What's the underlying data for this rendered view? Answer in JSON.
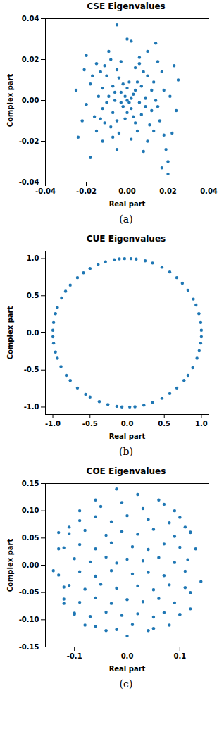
{
  "chart_data": [
    {
      "type": "scatter",
      "title": "CSE Eigenvalues",
      "x_label": "Real part",
      "y_label": "Complex part",
      "caption": "(a)",
      "color": "#1f77b4",
      "marker": "o",
      "xlim": [
        -0.04,
        0.04
      ],
      "ylim": [
        -0.04,
        0.04
      ],
      "xticks": [
        -0.04,
        -0.02,
        {
          "value": 0,
          "label": "0.00"
        },
        0.02,
        0.04
      ],
      "yticks": [
        -0.04,
        -0.02,
        {
          "value": 0,
          "label": "0.00"
        },
        0.02,
        0.04
      ],
      "x": [
        -0.005,
        0.0,
        0.002,
        -0.02,
        0.02,
        0.02,
        0.017,
        -0.025,
        -0.024,
        0.025,
        0.024,
        0.014,
        -0.018,
        0.019,
        -0.015,
        0.015,
        -0.012,
        0.01,
        -0.008,
        0.006,
        -0.018,
        0.018,
        -0.016,
        0.016,
        -0.01,
        0.01,
        -0.011,
        0.011,
        -0.005,
        0.004,
        -0.004,
        0.005,
        -0.014,
        0.014,
        -0.007,
        0.007,
        -0.007,
        0.007,
        -0.003,
        0.003,
        -0.002,
        0.002,
        0.0,
        -0.009,
        0.009,
        0.001,
        -0.001,
        -0.012,
        0.012,
        -0.012,
        0.012,
        -0.004,
        0.004,
        -0.006,
        0.006,
        0.0,
        0.0,
        -0.013,
        0.013,
        -0.003,
        0.002,
        -0.02,
        0.021,
        -0.008,
        0.008,
        -0.015,
        0.017,
        -0.021,
        0.022,
        -0.009,
        0.008,
        -0.005,
        0.01,
        -0.022,
        0.023,
        -0.002,
        0.005,
        -0.005,
        0.009,
        -0.01,
        0.003,
        -0.006,
        0.004,
        -0.001,
        0.001,
        -0.003,
        0.002,
        -0.017,
        0.015,
        -0.011,
        0.013,
        -0.013,
        0.006,
        -0.007,
        0.018
      ],
      "values": [
        0.037,
        0.03,
        0.029,
        0.022,
        -0.03,
        -0.036,
        -0.033,
        0.005,
        -0.018,
        0.01,
        -0.005,
        0.028,
        -0.028,
        -0.024,
        0.018,
        0.019,
        -0.02,
        -0.02,
        0.02,
        0.021,
        0.008,
        0.005,
        -0.008,
        -0.01,
        0.012,
        0.012,
        -0.011,
        -0.012,
        0.015,
        0.016,
        -0.016,
        -0.015,
        0.002,
        0.0,
        0.007,
        0.007,
        -0.006,
        -0.007,
        0.004,
        0.003,
        -0.003,
        -0.004,
        0.0,
        0.002,
        0.001,
        0.009,
        -0.009,
        0.006,
        0.005,
        -0.004,
        -0.005,
        0.011,
        -0.011,
        0.0,
        -0.001,
        0.006,
        -0.006,
        0.014,
        -0.015,
        0.019,
        -0.019,
        -0.002,
        0.002,
        -0.013,
        0.014,
        -0.015,
        0.014,
        0.015,
        -0.016,
        0.024,
        -0.025,
        -0.024,
        0.024,
        -0.01,
        0.017,
        0.008,
        0.009,
        -0.01,
        -0.003,
        -0.001,
        -0.008,
        0.004,
        0.005,
        0.002,
        -0.001,
        -0.001,
        0.001,
        0.012,
        -0.003,
        0.017,
        0.009,
        -0.009,
        0.018,
        -0.018,
        -0.017
      ]
    },
    {
      "type": "scatter",
      "title": "CUE Eigenvalues",
      "x_label": "Real part",
      "y_label": "Complex part",
      "caption": "(b)",
      "color": "#1f77b4",
      "marker": "o",
      "xlim": [
        -1.1,
        1.1
      ],
      "ylim": [
        -1.1,
        1.1
      ],
      "xticks": [
        {
          "value": -1,
          "label": "-1.0"
        },
        -0.5,
        {
          "value": 0,
          "label": "0.0"
        },
        0.5,
        {
          "value": 1,
          "label": "1.0"
        }
      ],
      "yticks": [
        {
          "value": -1,
          "label": "-1.0"
        },
        -0.5,
        {
          "value": 0,
          "label": "0.0"
        },
        0.5,
        {
          "value": 1,
          "label": "1.0"
        }
      ],
      "x": [
        0.999,
        0.99,
        0.966,
        0.927,
        0.891,
        0.819,
        0.743,
        0.669,
        0.574,
        0.469,
        0.342,
        0.242,
        0.122,
        0.052,
        -0.035,
        -0.105,
        -0.174,
        -0.292,
        -0.391,
        -0.5,
        -0.588,
        -0.669,
        -0.766,
        -0.829,
        -0.883,
        -0.94,
        -0.966,
        -0.99,
        -0.999,
        -0.999,
        -0.99,
        -0.966,
        -0.94,
        -0.891,
        -0.819,
        -0.766,
        -0.669,
        -0.559,
        -0.5,
        -0.375,
        -0.259,
        -0.139,
        -0.07,
        0.035,
        0.105,
        0.225,
        0.342,
        0.469,
        0.574,
        0.669,
        0.766,
        0.819,
        0.883,
        0.94,
        0.97,
        0.99,
        0.999
      ],
      "values": [
        0.035,
        0.139,
        0.259,
        0.375,
        0.454,
        0.574,
        0.669,
        0.743,
        0.819,
        0.883,
        0.94,
        0.97,
        0.993,
        0.999,
        0.999,
        0.995,
        0.985,
        0.956,
        0.921,
        0.866,
        0.809,
        0.743,
        0.643,
        0.559,
        0.469,
        0.342,
        0.259,
        0.139,
        0.035,
        -0.052,
        -0.139,
        -0.259,
        -0.342,
        -0.454,
        -0.574,
        -0.643,
        -0.743,
        -0.829,
        -0.866,
        -0.927,
        -0.966,
        -0.99,
        -0.998,
        -0.999,
        -0.995,
        -0.974,
        -0.94,
        -0.883,
        -0.819,
        -0.743,
        -0.643,
        -0.574,
        -0.469,
        -0.342,
        -0.242,
        -0.139,
        -0.052
      ]
    },
    {
      "type": "scatter",
      "title": "COE Eigenvalues",
      "x_label": "Real part",
      "y_label": "Complex part",
      "caption": "(c)",
      "color": "#1f77b4",
      "marker": "o",
      "xlim": [
        -0.155,
        0.155
      ],
      "ylim": [
        -0.15,
        0.15
      ],
      "xticks": [
        -0.1,
        {
          "value": 0,
          "label": "0.0"
        },
        0.1
      ],
      "yticks": [
        -0.15,
        {
          "value": -0.1,
          "label": "-0.10"
        },
        -0.05,
        {
          "value": 0,
          "label": "0.00"
        },
        0.05,
        {
          "value": 0.1,
          "label": "0.10"
        },
        0.15
      ],
      "x": [
        -0.13,
        -0.12,
        -0.11,
        -0.1,
        -0.09,
        -0.08,
        -0.06,
        -0.04,
        -0.02,
        0.0,
        0.02,
        0.04,
        0.06,
        0.08,
        0.09,
        0.1,
        0.11,
        0.12,
        0.13,
        0.14,
        -0.14,
        -0.13,
        -0.12,
        0.12,
        0.12,
        -0.05,
        -0.01,
        0.03,
        0.07,
        -0.09,
        -0.06,
        -0.03,
        0.0,
        0.04,
        0.08,
        0.1,
        -0.11,
        -0.08,
        -0.04,
        -0.01,
        0.02,
        0.05,
        0.09,
        0.12,
        -0.12,
        -0.09,
        -0.06,
        -0.03,
        0.01,
        0.04,
        0.07,
        0.1,
        -0.1,
        -0.07,
        -0.04,
        -0.02,
        0.0,
        0.03,
        0.06,
        0.09,
        0.115,
        -0.13,
        -0.09,
        -0.06,
        -0.03,
        0.01,
        0.04,
        0.07,
        0.11,
        -0.11,
        -0.08,
        -0.05,
        -0.02,
        0.02,
        0.05,
        0.08,
        0.11,
        -0.12,
        -0.09,
        -0.06,
        -0.03,
        0.0,
        0.03,
        0.06,
        0.09,
        -0.1,
        -0.07,
        -0.04,
        -0.01,
        0.02,
        0.05,
        0.07,
        0.1,
        -0.06,
        -0.02,
        0.01,
        0.05
      ],
      "values": [
        0.03,
        -0.04,
        0.07,
        -0.09,
        0.1,
        -0.11,
        0.12,
        -0.12,
        0.14,
        -0.13,
        0.13,
        -0.12,
        0.12,
        -0.11,
        0.1,
        -0.09,
        0.07,
        -0.05,
        0.03,
        -0.03,
        -0.01,
        0.06,
        -0.07,
        0.06,
        -0.08,
        0.108,
        0.115,
        0.104,
        0.112,
        0.082,
        0.089,
        0.08,
        0.091,
        0.084,
        0.078,
        0.088,
        0.058,
        0.064,
        0.055,
        0.062,
        0.057,
        0.066,
        0.053,
        0.061,
        0.032,
        0.038,
        0.03,
        0.041,
        0.034,
        0.029,
        0.039,
        0.033,
        0.012,
        0.006,
        0.015,
        0.004,
        0.011,
        0.008,
        0.014,
        0.005,
        0.01,
        -0.018,
        -0.012,
        -0.02,
        -0.01,
        -0.016,
        -0.013,
        -0.019,
        -0.011,
        -0.037,
        -0.044,
        -0.035,
        -0.042,
        -0.038,
        -0.045,
        -0.036,
        -0.041,
        -0.062,
        -0.068,
        -0.06,
        -0.07,
        -0.063,
        -0.067,
        -0.061,
        -0.069,
        -0.088,
        -0.094,
        -0.086,
        -0.092,
        -0.089,
        -0.095,
        -0.087,
        -0.091,
        -0.112,
        -0.118,
        -0.109,
        -0.116
      ]
    }
  ]
}
